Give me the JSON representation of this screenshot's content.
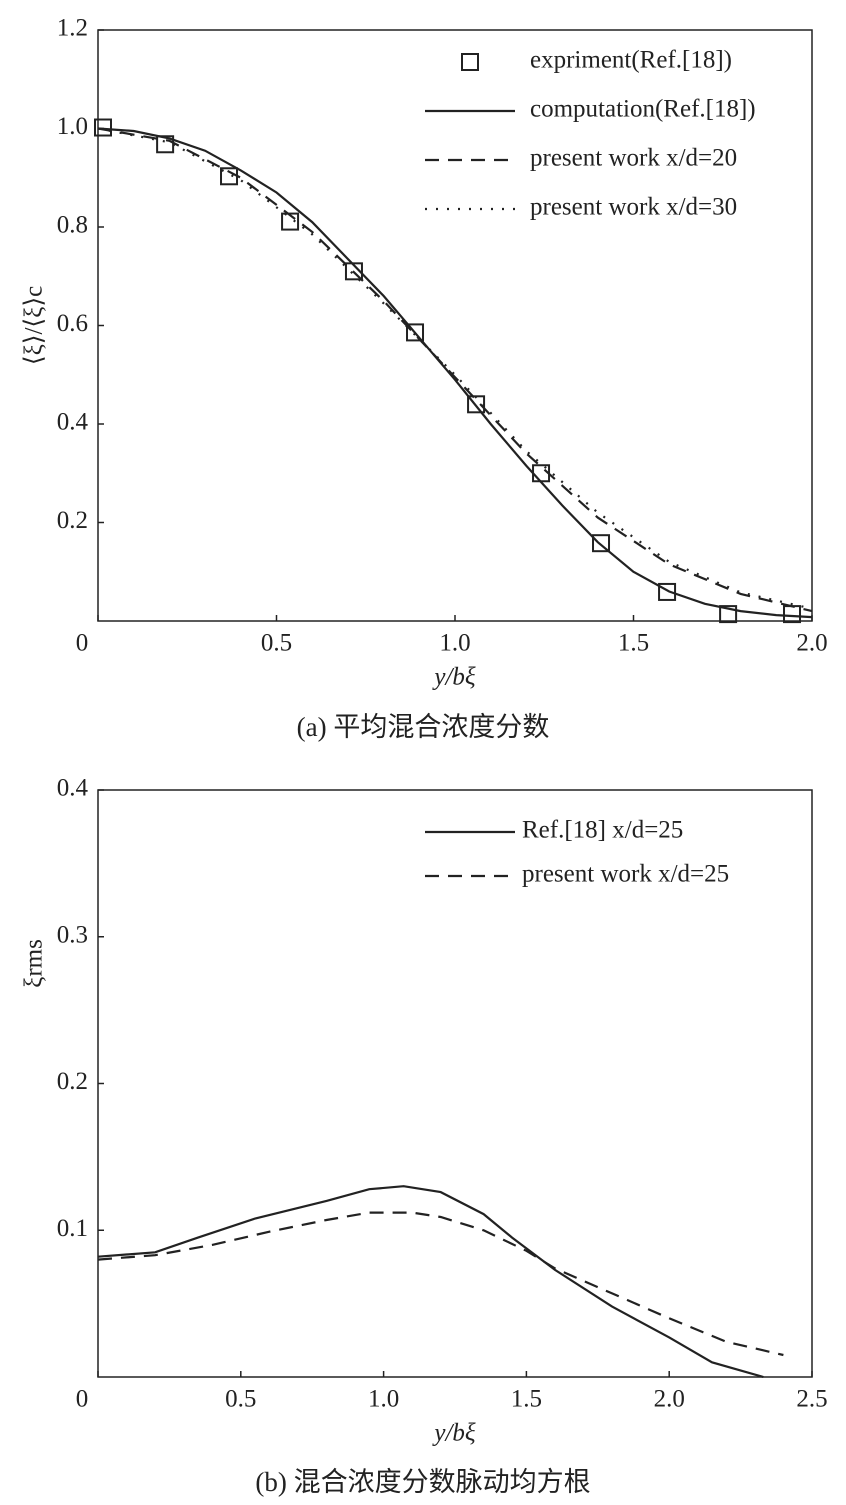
{
  "chart_data": [
    {
      "type": "line",
      "caption": "(a) 平均混合浓度分数",
      "xlabel": "y/bξ",
      "ylabel": "⟨ξ⟩/⟨ξ⟩c",
      "xlim": [
        0,
        2.0
      ],
      "ylim": [
        0,
        1.2
      ],
      "xticks": [
        0,
        0.5,
        {
          "value": 1,
          "label": "1.0"
        },
        1.5,
        {
          "value": 2,
          "label": "2.0"
        }
      ],
      "yticks": [
        0.2,
        0.4,
        0.6,
        0.8,
        {
          "value": 1,
          "label": "1.0"
        },
        1.2
      ],
      "series": [
        {
          "name": "expriment(Ref.[18])",
          "color": "#222222",
          "style": "square",
          "x": [
            0.014,
            0.188,
            0.367,
            0.538,
            0.717,
            0.888,
            1.059,
            1.241,
            1.409,
            1.594,
            1.765,
            1.944
          ],
          "values": [
            1.002,
            0.968,
            0.903,
            0.811,
            0.71,
            0.586,
            0.44,
            0.3,
            0.158,
            0.059,
            0.014,
            0.014
          ]
        },
        {
          "name": "computation(Ref.[18])",
          "color": "#222222",
          "style": "solid",
          "x": [
            0,
            0.1,
            0.2,
            0.3,
            0.4,
            0.5,
            0.6,
            0.7,
            0.8,
            0.9,
            1.0,
            1.1,
            1.2,
            1.3,
            1.4,
            1.5,
            1.6,
            1.7,
            1.8,
            1.9,
            2.0
          ],
          "values": [
            1.0,
            0.995,
            0.98,
            0.955,
            0.915,
            0.87,
            0.81,
            0.735,
            0.66,
            0.575,
            0.49,
            0.4,
            0.315,
            0.235,
            0.16,
            0.1,
            0.06,
            0.035,
            0.02,
            0.012,
            0.008
          ]
        },
        {
          "name": "present work x/d=20",
          "color": "#222222",
          "style": "dashed",
          "x": [
            0,
            0.2,
            0.4,
            0.6,
            0.8,
            1.0,
            1.2,
            1.4,
            1.6,
            1.8,
            2.0
          ],
          "values": [
            1.0,
            0.975,
            0.9,
            0.79,
            0.65,
            0.495,
            0.34,
            0.21,
            0.115,
            0.055,
            0.02
          ]
        },
        {
          "name": "present work x/d=30",
          "color": "#222222",
          "style": "dotted",
          "x": [
            0,
            0.2,
            0.4,
            0.6,
            0.8,
            1.0,
            1.2,
            1.4,
            1.6,
            1.8,
            2.0
          ],
          "values": [
            1.0,
            0.972,
            0.895,
            0.785,
            0.645,
            0.5,
            0.345,
            0.22,
            0.12,
            0.058,
            0.025
          ]
        }
      ]
    },
    {
      "type": "line",
      "caption": "(b) 混合浓度分数脉动均方根",
      "xlabel": "y/bξ",
      "ylabel": "ξrms",
      "xlim": [
        0,
        2.5
      ],
      "ylim": [
        0,
        0.4
      ],
      "xticks": [
        0,
        0.5,
        {
          "value": 1,
          "label": "1.0"
        },
        1.5,
        {
          "value": 2,
          "label": "2.0"
        },
        2.5
      ],
      "yticks": [
        0.1,
        0.2,
        0.3,
        0.4
      ],
      "series": [
        {
          "name": "Ref.[18] x/d=25",
          "color": "#222222",
          "style": "solid",
          "x": [
            0,
            0.2,
            0.35,
            0.55,
            0.8,
            0.95,
            1.07,
            1.2,
            1.35,
            1.45,
            1.6,
            1.8,
            2.0,
            2.15,
            2.33
          ],
          "values": [
            0.082,
            0.085,
            0.095,
            0.108,
            0.12,
            0.128,
            0.13,
            0.126,
            0.111,
            0.095,
            0.073,
            0.048,
            0.027,
            0.01,
            0
          ]
        },
        {
          "name": "present work x/d=25",
          "color": "#222222",
          "style": "dashed",
          "x": [
            0,
            0.2,
            0.4,
            0.6,
            0.8,
            0.95,
            1.1,
            1.2,
            1.35,
            1.5,
            1.6,
            1.8,
            2.0,
            2.2,
            2.4
          ],
          "values": [
            0.08,
            0.083,
            0.09,
            0.099,
            0.107,
            0.112,
            0.112,
            0.109,
            0.1,
            0.086,
            0.074,
            0.057,
            0.04,
            0.024,
            0.015
          ]
        }
      ]
    }
  ]
}
